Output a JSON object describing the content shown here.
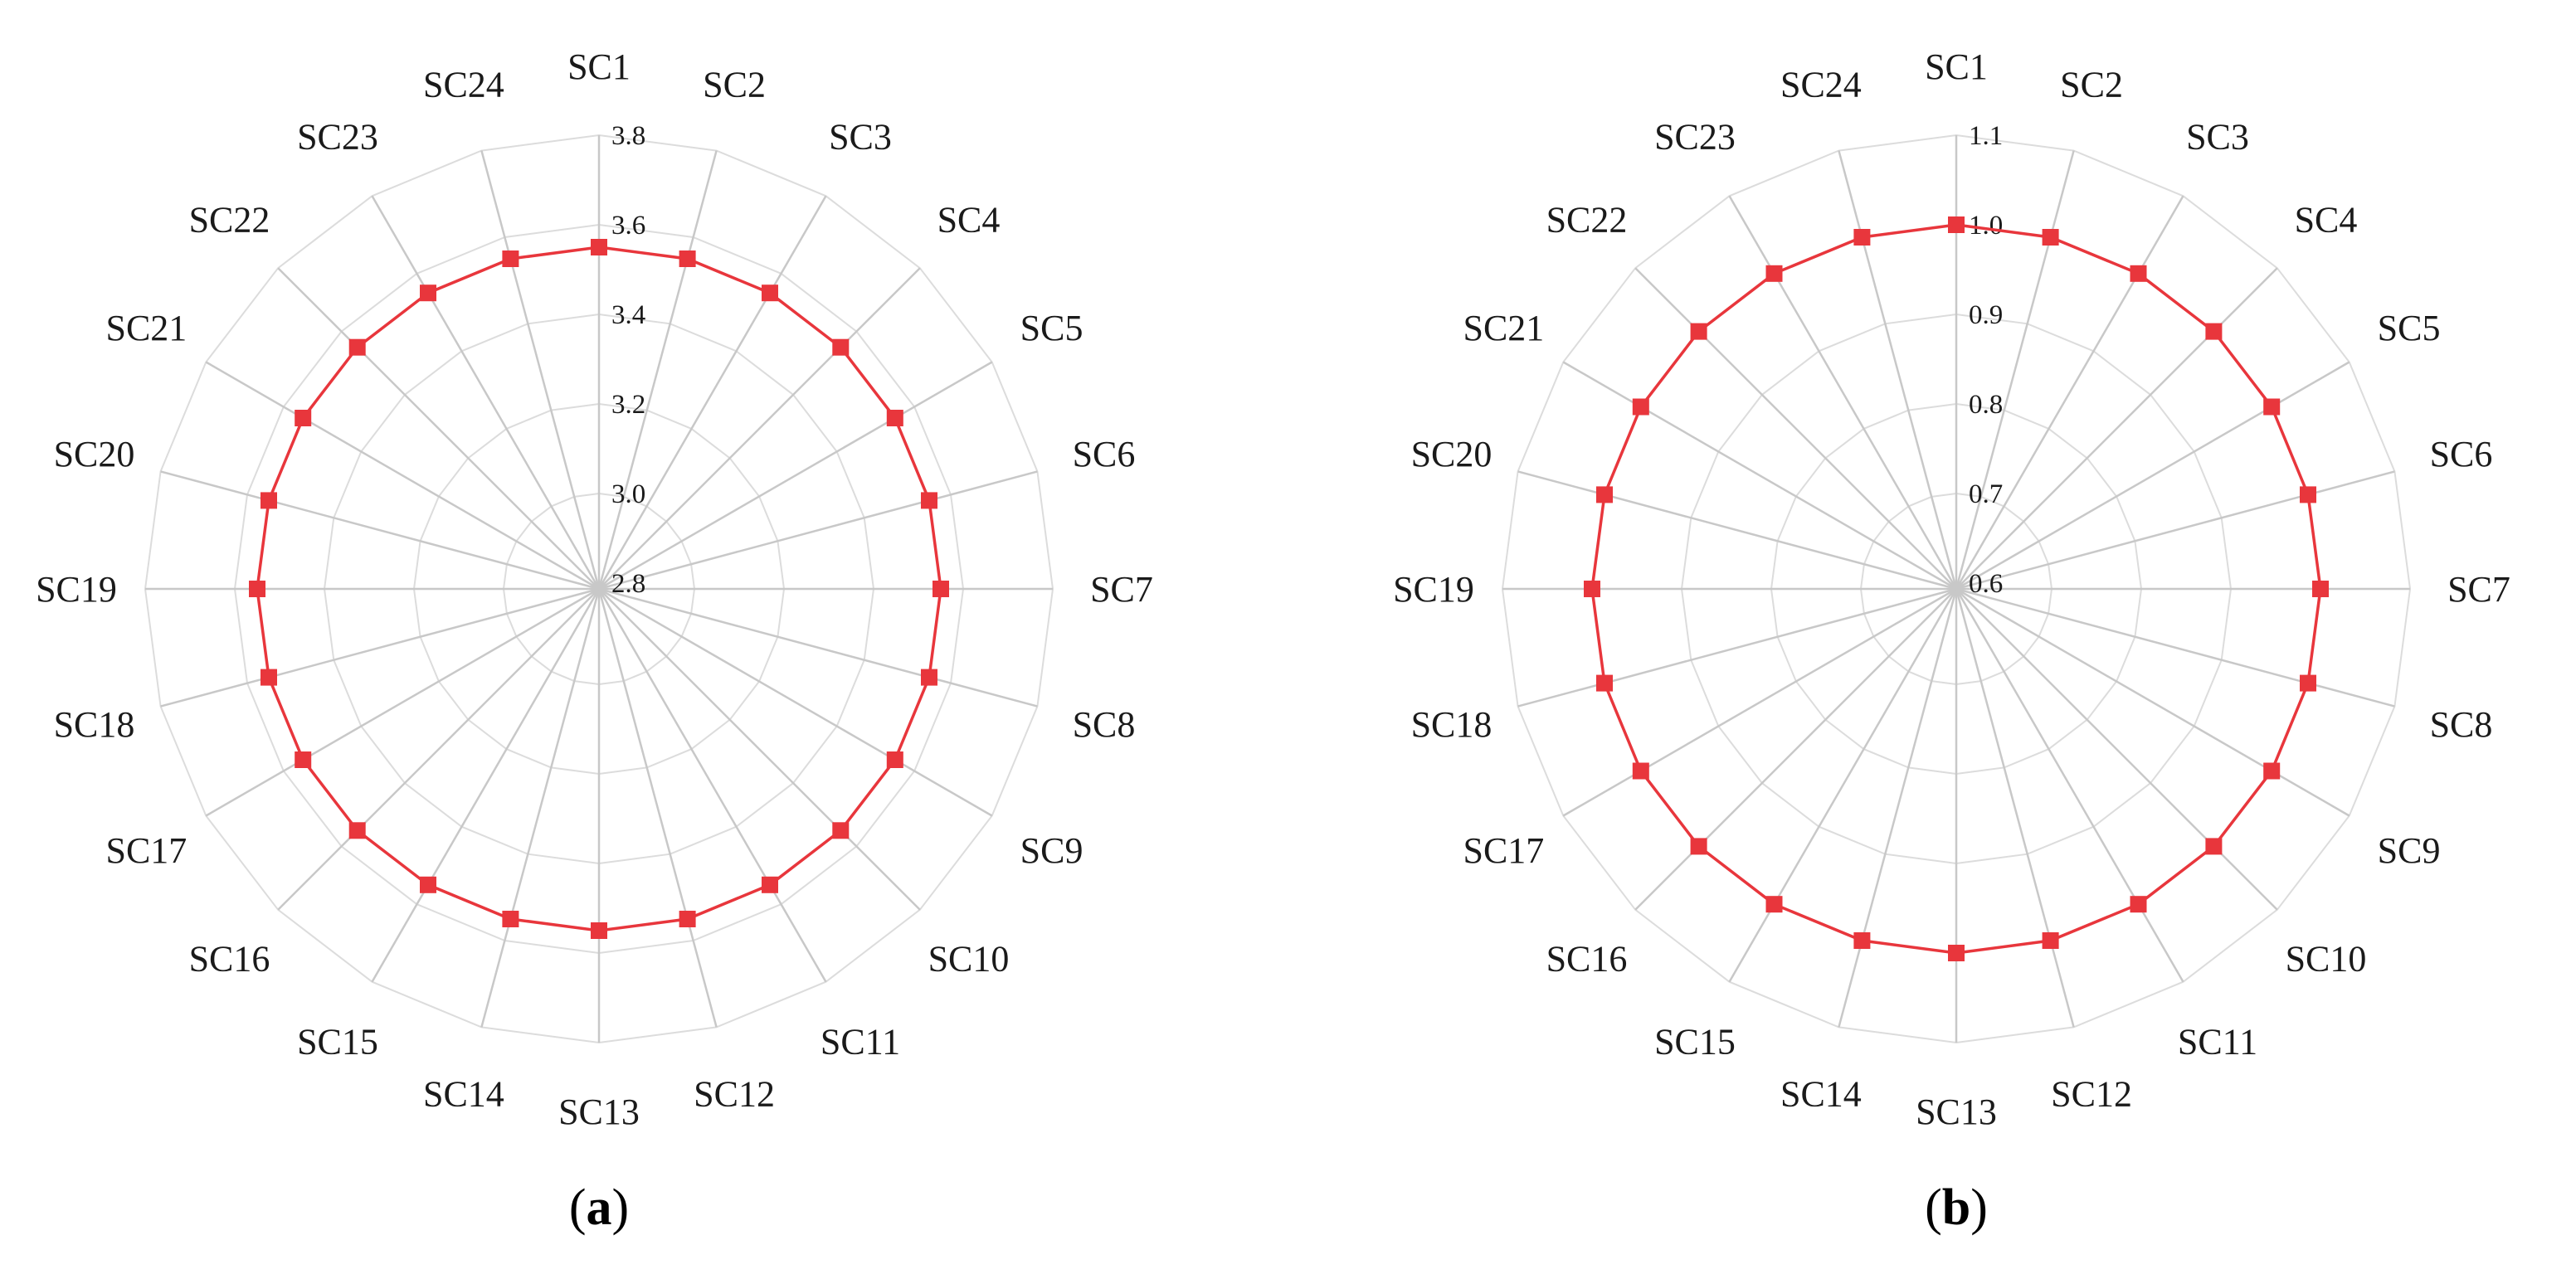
{
  "chart_data": [
    {
      "type": "radar",
      "panel_label": "(a)",
      "panel_letter": "a",
      "categories": [
        "SC1",
        "SC2",
        "SC3",
        "SC4",
        "SC5",
        "SC6",
        "SC7",
        "SC8",
        "SC9",
        "SC10",
        "SC11",
        "SC12",
        "SC13",
        "SC14",
        "SC15",
        "SC16",
        "SC17",
        "SC18",
        "SC19",
        "SC20",
        "SC21",
        "SC22",
        "SC23",
        "SC24"
      ],
      "rlim": [
        2.8,
        3.8
      ],
      "ticks": [
        "2.8",
        "3.0",
        "3.2",
        "3.4",
        "3.6",
        "3.8"
      ],
      "grid": true,
      "series": [
        {
          "color": "#e8363c",
          "marker": "square",
          "values": [
            3.55,
            3.55,
            3.55,
            3.55,
            3.55,
            3.55,
            3.55,
            3.55,
            3.55,
            3.55,
            3.55,
            3.55,
            3.55,
            3.55,
            3.55,
            3.55,
            3.55,
            3.55,
            3.55,
            3.55,
            3.55,
            3.55,
            3.55,
            3.55
          ]
        }
      ]
    },
    {
      "type": "radar",
      "panel_label": "(b)",
      "panel_letter": "b",
      "categories": [
        "SC1",
        "SC2",
        "SC3",
        "SC4",
        "SC5",
        "SC6",
        "SC7",
        "SC8",
        "SC9",
        "SC10",
        "SC11",
        "SC12",
        "SC13",
        "SC14",
        "SC15",
        "SC16",
        "SC17",
        "SC18",
        "SC19",
        "SC20",
        "SC21",
        "SC22",
        "SC23",
        "SC24"
      ],
      "rlim": [
        0.6,
        1.1
      ],
      "ticks": [
        "0.6",
        "0.7",
        "0.8",
        "0.9",
        "1.0",
        "1.1"
      ],
      "grid": true,
      "series": [
        {
          "color": "#e8363c",
          "marker": "square",
          "values": [
            1.0,
            1.0,
            1.0,
            1.0,
            1.0,
            1.0,
            1.0,
            1.0,
            1.0,
            1.0,
            1.0,
            1.0,
            1.0,
            1.0,
            1.0,
            1.0,
            1.0,
            1.0,
            1.0,
            1.0,
            1.0,
            1.0,
            1.0,
            1.0
          ]
        }
      ]
    }
  ]
}
